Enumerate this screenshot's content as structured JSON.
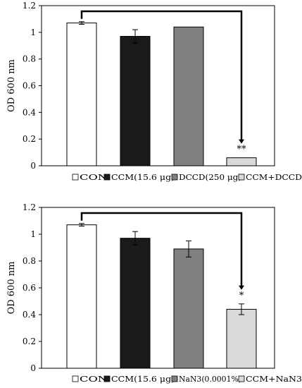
{
  "chart_data": [
    {
      "type": "bar",
      "categories": [
        "CON",
        "CCM(15.6 μg)",
        "DCCD(250 μg)",
        "CCM+DCCD"
      ],
      "values": [
        1.07,
        0.97,
        1.04,
        0.06
      ],
      "errors": [
        0.01,
        0.05,
        0.0,
        0.0
      ],
      "colors": [
        "#ffffff",
        "#1a1a1a",
        "#808080",
        "#d9d9d9"
      ],
      "ylabel": "OD 600 nm",
      "ylim": [
        0,
        1.2
      ],
      "yticks": [
        "0",
        "0.2",
        "0.4",
        "0.6",
        "0.8",
        "1",
        "1.2"
      ],
      "significance": {
        "from": 0,
        "to": 3,
        "label": "**"
      },
      "legend_position": "bottom",
      "grid": false
    },
    {
      "type": "bar",
      "categories": [
        "CON",
        "CCM(15.6 μg)",
        "NaN3(0.0001%)",
        "CCM+NaN3"
      ],
      "values": [
        1.07,
        0.97,
        0.89,
        0.44
      ],
      "errors": [
        0.01,
        0.05,
        0.06,
        0.04
      ],
      "colors": [
        "#ffffff",
        "#1a1a1a",
        "#808080",
        "#d9d9d9"
      ],
      "ylabel": "OD 600 nm",
      "ylim": [
        0,
        1.2
      ],
      "yticks": [
        "0",
        "0.2",
        "0.4",
        "0.6",
        "0.8",
        "1",
        "1.2"
      ],
      "significance": {
        "from": 0,
        "to": 3,
        "label": "*"
      },
      "legend_position": "bottom",
      "grid": false
    }
  ]
}
